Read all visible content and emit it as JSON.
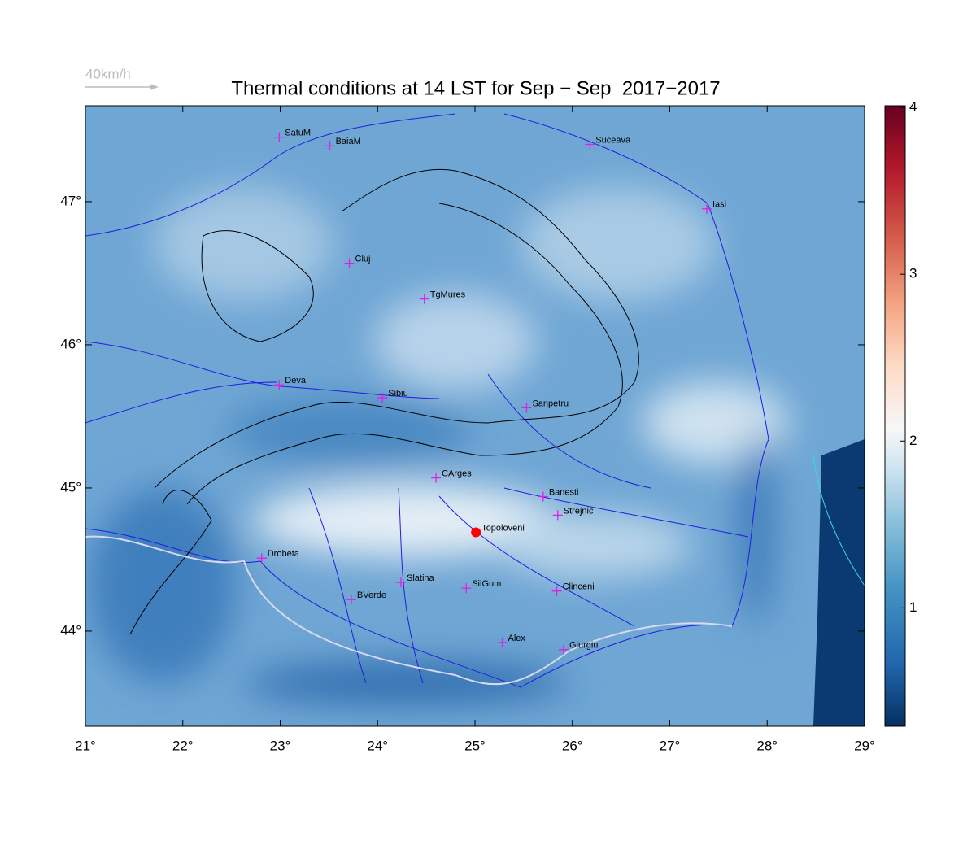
{
  "title": "Thermal conditions at 14 LST for Sep − Sep  2017−2017",
  "wind_legend": {
    "label": "40km/h"
  },
  "map": {
    "lonlim": [
      21,
      29
    ],
    "latlim": [
      43.335,
      47.67
    ],
    "xticks": [
      {
        "value": 21,
        "label": "21°"
      },
      {
        "value": 22,
        "label": "22°"
      },
      {
        "value": 23,
        "label": "23°"
      },
      {
        "value": 24,
        "label": "24°"
      },
      {
        "value": 25,
        "label": "25°"
      },
      {
        "value": 26,
        "label": "26°"
      },
      {
        "value": 27,
        "label": "27°"
      },
      {
        "value": 28,
        "label": "28°"
      },
      {
        "value": 29,
        "label": "29°"
      }
    ],
    "yticks": [
      {
        "value": 44,
        "label": "44°"
      },
      {
        "value": 45,
        "label": "45°"
      },
      {
        "value": 46,
        "label": "46°"
      },
      {
        "value": 47,
        "label": "47°"
      }
    ]
  },
  "colorbar": {
    "clim": [
      0.29,
      4.01
    ],
    "ticks": [
      1,
      2,
      3,
      4
    ]
  },
  "cities": [
    {
      "name": "SatuM",
      "lon": 22.99,
      "lat": 47.45,
      "marker": "plus"
    },
    {
      "name": "BaiaM",
      "lon": 23.51,
      "lat": 47.39,
      "marker": "plus"
    },
    {
      "name": "Suceava",
      "lon": 26.18,
      "lat": 47.4,
      "marker": "plus"
    },
    {
      "name": "Iasi",
      "lon": 27.38,
      "lat": 46.95,
      "marker": "plus"
    },
    {
      "name": "Cluj",
      "lon": 23.71,
      "lat": 46.57,
      "marker": "plus"
    },
    {
      "name": "TgMures",
      "lon": 24.48,
      "lat": 46.32,
      "marker": "plus"
    },
    {
      "name": "Deva",
      "lon": 22.99,
      "lat": 45.72,
      "marker": "plus"
    },
    {
      "name": "Sibiu",
      "lon": 24.05,
      "lat": 45.63,
      "marker": "plus"
    },
    {
      "name": "Sanpetru",
      "lon": 25.53,
      "lat": 45.56,
      "marker": "plus"
    },
    {
      "name": "CArges",
      "lon": 24.6,
      "lat": 45.07,
      "marker": "plus"
    },
    {
      "name": "Banesti",
      "lon": 25.7,
      "lat": 44.94,
      "marker": "plus"
    },
    {
      "name": "Strejnic",
      "lon": 25.85,
      "lat": 44.81,
      "marker": "plus"
    },
    {
      "name": "Topoloveni",
      "lon": 25.01,
      "lat": 44.69,
      "marker": "dot"
    },
    {
      "name": "Drobeta",
      "lon": 22.81,
      "lat": 44.51,
      "marker": "plus"
    },
    {
      "name": "Slatina",
      "lon": 24.24,
      "lat": 44.34,
      "marker": "plus"
    },
    {
      "name": "SilGum",
      "lon": 24.91,
      "lat": 44.3,
      "marker": "plus"
    },
    {
      "name": "Clinceni",
      "lon": 25.84,
      "lat": 44.28,
      "marker": "plus"
    },
    {
      "name": "BVerde",
      "lon": 23.73,
      "lat": 44.22,
      "marker": "plus"
    },
    {
      "name": "Alex",
      "lon": 25.28,
      "lat": 43.92,
      "marker": "plus"
    },
    {
      "name": "Giurgiu",
      "lon": 25.91,
      "lat": 43.87,
      "marker": "plus"
    }
  ]
}
